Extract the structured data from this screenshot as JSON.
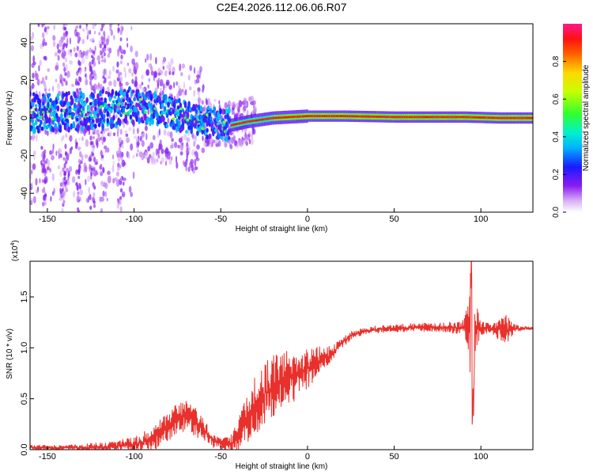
{
  "title": "C2E4.2026.112.06.06.R07",
  "colorbar": {
    "label": "Normalized spectral amplitude",
    "ticks": [
      {
        "value": 0.0,
        "label": "0.0"
      },
      {
        "value": 0.2,
        "label": "0.2"
      },
      {
        "value": 0.4,
        "label": "0.4"
      },
      {
        "value": 0.6,
        "label": "0.6"
      },
      {
        "value": 0.8,
        "label": "0.8"
      }
    ],
    "range": [
      0,
      1
    ]
  },
  "chart_data": [
    {
      "type": "heatmap",
      "title": "",
      "xlabel": "Height of straight line (km)",
      "ylabel": "Frequency (Hz)",
      "xlim": [
        -160,
        130
      ],
      "ylim": [
        -50,
        50
      ],
      "xticks": [
        {
          "value": -150,
          "label": "-150"
        },
        {
          "value": -100,
          "label": "-100"
        },
        {
          "value": -50,
          "label": "-50"
        },
        {
          "value": 0,
          "label": "0"
        },
        {
          "value": 50,
          "label": "50"
        },
        {
          "value": 100,
          "label": "100"
        }
      ],
      "yticks": [
        {
          "value": -40,
          "label": "-40"
        },
        {
          "value": -20,
          "label": "-20"
        },
        {
          "value": 0,
          "label": "0"
        },
        {
          "value": 20,
          "label": "20"
        },
        {
          "value": 40,
          "label": "40"
        }
      ],
      "dominant_frequency": {
        "x": [
          -150,
          -120,
          -100,
          -80,
          -60,
          -50,
          -45,
          -35,
          -20,
          0,
          20,
          50,
          90,
          110,
          130
        ],
        "y": [
          3,
          4,
          7,
          3,
          -2,
          -3,
          -4,
          -2,
          0,
          1,
          1,
          0.5,
          0.5,
          0,
          0
        ]
      },
      "colormap": "rainbow"
    },
    {
      "type": "line",
      "title": "",
      "xlabel": "Height of straight line (km)",
      "ylabel": "SNR (10 * v/v)",
      "y_multiplier": "(x10",
      "y_multiplier_exp": "4",
      "xlim": [
        -160,
        130
      ],
      "ylim": [
        0,
        1.85
      ],
      "xticks": [
        {
          "value": -150,
          "label": "-150"
        },
        {
          "value": -100,
          "label": "-100"
        },
        {
          "value": -50,
          "label": "-50"
        },
        {
          "value": 0,
          "label": "0"
        },
        {
          "value": 50,
          "label": "50"
        },
        {
          "value": 100,
          "label": "100"
        }
      ],
      "yticks": [
        {
          "value": 0.0,
          "label": "0.0"
        },
        {
          "value": 0.5,
          "label": "0.5"
        },
        {
          "value": 1.0,
          "label": "1.0"
        },
        {
          "value": 1.5,
          "label": "1.5"
        }
      ],
      "series": [
        {
          "color": "#e8312c",
          "x": [
            -160,
            -140,
            -120,
            -100,
            -90,
            -80,
            -75,
            -70,
            -65,
            -60,
            -55,
            -50,
            -45,
            -40,
            -35,
            -30,
            -25,
            -20,
            -15,
            -10,
            -5,
            0,
            5,
            10,
            15,
            20,
            25,
            30,
            40,
            50,
            60,
            70,
            80,
            90,
            93,
            95,
            97,
            100,
            105,
            110,
            115,
            120,
            125,
            130
          ],
          "y": [
            0.02,
            0.02,
            0.02,
            0.05,
            0.1,
            0.22,
            0.3,
            0.35,
            0.28,
            0.2,
            0.1,
            0.06,
            0.05,
            0.12,
            0.28,
            0.45,
            0.55,
            0.62,
            0.68,
            0.72,
            0.75,
            0.8,
            0.85,
            0.9,
            0.95,
            1.05,
            1.12,
            1.15,
            1.18,
            1.19,
            1.2,
            1.2,
            1.2,
            1.2,
            1.2,
            1.2,
            1.2,
            1.19,
            1.19,
            1.18,
            1.18,
            1.19,
            1.19,
            1.19
          ],
          "noise_amplitude": [
            0.03,
            0.03,
            0.05,
            0.08,
            0.12,
            0.15,
            0.18,
            0.15,
            0.15,
            0.12,
            0.08,
            0.06,
            0.08,
            0.2,
            0.25,
            0.3,
            0.32,
            0.3,
            0.3,
            0.3,
            0.22,
            0.2,
            0.16,
            0.12,
            0.08,
            0.06,
            0.05,
            0.04,
            0.04,
            0.04,
            0.04,
            0.05,
            0.05,
            0.08,
            0.25,
            0.8,
            0.25,
            0.08,
            0.05,
            0.1,
            0.15,
            0.04,
            0.02,
            0.02
          ]
        }
      ]
    }
  ]
}
